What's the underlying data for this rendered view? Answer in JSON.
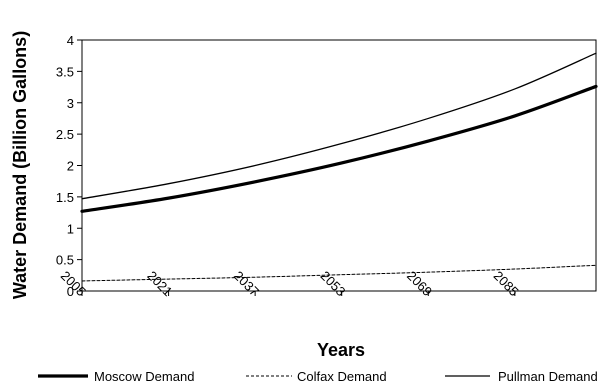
{
  "chart_data": {
    "type": "line",
    "xlabel": "Years",
    "ylabel": "Water Demand (Billion Gallons)",
    "x_ticks": [
      "2005",
      "2021",
      "2037",
      "2053",
      "2069",
      "2085"
    ],
    "y_ticks": [
      "0",
      "0.5",
      "1",
      "1.5",
      "2",
      "2.5",
      "3",
      "3.5",
      "4"
    ],
    "xlim": [
      2005,
      2100
    ],
    "ylim": [
      0,
      4
    ],
    "legend_position": "bottom",
    "grid": false,
    "x": [
      2005,
      2021,
      2037,
      2053,
      2069,
      2085,
      2100
    ],
    "series": [
      {
        "name": "Moscow Demand",
        "style": "thick-solid",
        "color": "#000000",
        "values": [
          1.27,
          1.48,
          1.74,
          2.04,
          2.39,
          2.79,
          3.26
        ]
      },
      {
        "name": "Colfax Demand",
        "style": "dashed",
        "color": "#000000",
        "values": [
          0.16,
          0.19,
          0.22,
          0.26,
          0.3,
          0.35,
          0.41
        ]
      },
      {
        "name": "Pullman Demand",
        "style": "thin-solid",
        "color": "#000000",
        "values": [
          1.47,
          1.71,
          2.0,
          2.35,
          2.75,
          3.22,
          3.79
        ]
      }
    ]
  }
}
